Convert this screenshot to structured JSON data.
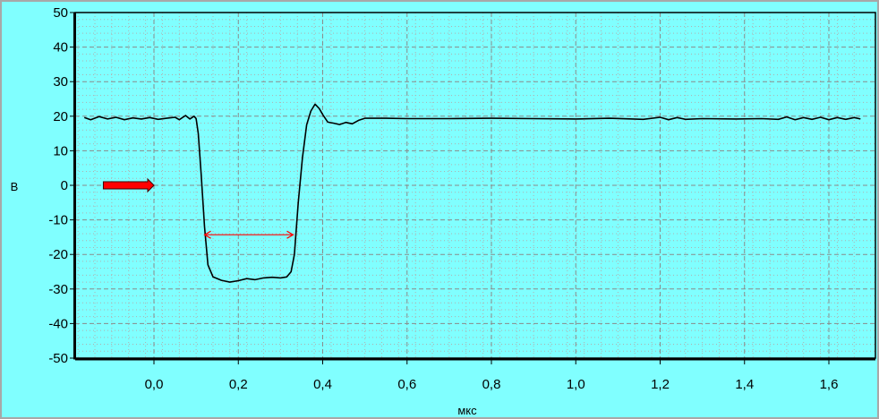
{
  "chart_data": {
    "type": "line",
    "xlabel": "мкс",
    "ylabel": "В",
    "xlim": [
      -0.18,
      1.68
    ],
    "ylim": [
      -50,
      50
    ],
    "x_ticks": [
      "0,0",
      "0,2",
      "0,4",
      "0,6",
      "0,8",
      "1,0",
      "1,2",
      "1,4",
      "1,6"
    ],
    "y_ticks": [
      "50",
      "40",
      "30",
      "20",
      "10",
      "0",
      "-10",
      "-20",
      "-30",
      "-40",
      "-50"
    ],
    "grid": true,
    "colors": {
      "background": "#80ffff",
      "plot_area": "#80ffff",
      "signal": "#000000",
      "marker": "#ff0000",
      "grid": "#8a8a8a"
    },
    "series": [
      {
        "points": [
          [
            -0.165,
            19.6
          ],
          [
            -0.15,
            19.0
          ],
          [
            -0.13,
            19.9
          ],
          [
            -0.11,
            19.2
          ],
          [
            -0.09,
            19.7
          ],
          [
            -0.07,
            19.0
          ],
          [
            -0.05,
            19.5
          ],
          [
            -0.03,
            19.2
          ],
          [
            -0.01,
            19.6
          ],
          [
            0.01,
            19.1
          ],
          [
            0.03,
            19.4
          ],
          [
            0.05,
            19.7
          ],
          [
            0.06,
            19.0
          ],
          [
            0.075,
            20.2
          ],
          [
            0.085,
            19.2
          ],
          [
            0.095,
            20.0
          ],
          [
            0.1,
            19.3
          ],
          [
            0.105,
            15.0
          ],
          [
            0.112,
            3.0
          ],
          [
            0.12,
            -12.0
          ],
          [
            0.128,
            -23.0
          ],
          [
            0.14,
            -26.5
          ],
          [
            0.16,
            -27.5
          ],
          [
            0.18,
            -28.0
          ],
          [
            0.2,
            -27.6
          ],
          [
            0.22,
            -27.0
          ],
          [
            0.24,
            -27.3
          ],
          [
            0.26,
            -26.8
          ],
          [
            0.28,
            -26.6
          ],
          [
            0.3,
            -26.8
          ],
          [
            0.315,
            -26.5
          ],
          [
            0.325,
            -25.0
          ],
          [
            0.333,
            -20.0
          ],
          [
            0.342,
            -5.0
          ],
          [
            0.352,
            8.0
          ],
          [
            0.362,
            17.5
          ],
          [
            0.372,
            21.5
          ],
          [
            0.382,
            23.5
          ],
          [
            0.392,
            22.2
          ],
          [
            0.4,
            20.5
          ],
          [
            0.412,
            18.3
          ],
          [
            0.425,
            18.0
          ],
          [
            0.44,
            17.6
          ],
          [
            0.455,
            18.2
          ],
          [
            0.47,
            17.8
          ],
          [
            0.485,
            18.8
          ],
          [
            0.5,
            19.4
          ],
          [
            0.55,
            19.4
          ],
          [
            0.6,
            19.3
          ],
          [
            0.7,
            19.3
          ],
          [
            0.8,
            19.4
          ],
          [
            0.9,
            19.3
          ],
          [
            1.0,
            19.2
          ],
          [
            1.08,
            19.4
          ],
          [
            1.16,
            19.1
          ],
          [
            1.2,
            19.7
          ],
          [
            1.22,
            19.0
          ],
          [
            1.24,
            19.6
          ],
          [
            1.26,
            19.1
          ],
          [
            1.3,
            19.3
          ],
          [
            1.38,
            19.2
          ],
          [
            1.44,
            19.3
          ],
          [
            1.48,
            19.1
          ],
          [
            1.5,
            19.8
          ],
          [
            1.52,
            19.0
          ],
          [
            1.54,
            19.6
          ],
          [
            1.56,
            19.1
          ],
          [
            1.58,
            19.7
          ],
          [
            1.6,
            19.0
          ],
          [
            1.62,
            19.6
          ],
          [
            1.64,
            19.1
          ],
          [
            1.66,
            19.6
          ],
          [
            1.675,
            19.2
          ]
        ]
      }
    ],
    "annotations": [
      {
        "type": "double-arrow",
        "x1": 0.12,
        "x2": 0.33,
        "y": -14.3,
        "color": "#ff0000"
      },
      {
        "type": "level-arrow",
        "x1": -0.12,
        "x2": -0.0,
        "y": 0,
        "color": "#ff0000"
      }
    ]
  }
}
